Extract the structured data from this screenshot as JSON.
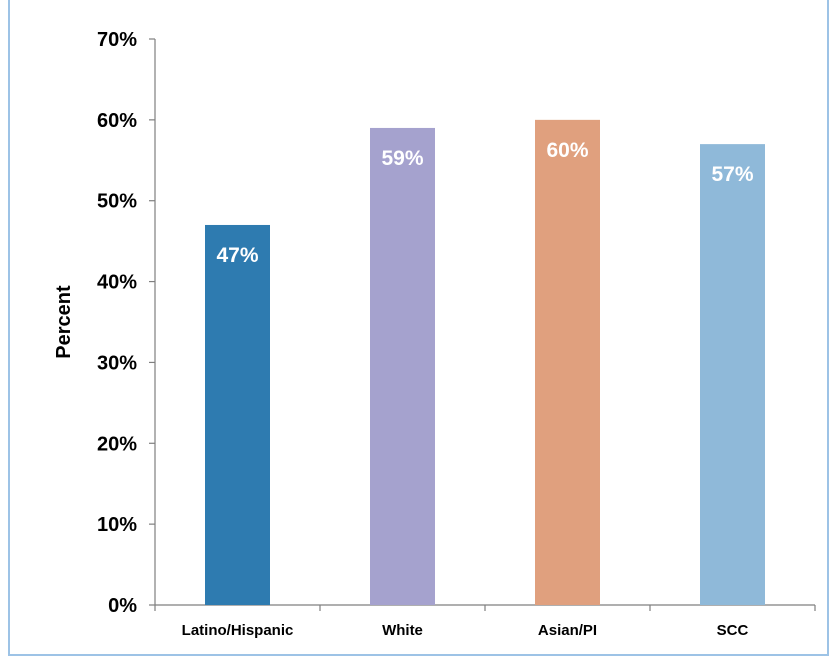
{
  "chart_data": {
    "type": "bar",
    "title": "",
    "xlabel": "",
    "ylabel": "Percent",
    "ylim": [
      0,
      70
    ],
    "y_ticks": [
      "0%",
      "10%",
      "20%",
      "30%",
      "40%",
      "50%",
      "60%",
      "70%"
    ],
    "grid": false,
    "legend": "none",
    "categories": [
      "Latino/Hispanic",
      "White",
      "Asian/PI",
      "SCC"
    ],
    "values": [
      47,
      59,
      60,
      57
    ],
    "data_labels": [
      "47%",
      "59%",
      "60%",
      "57%"
    ],
    "colors": [
      "#2e7bb0",
      "#a5a2ce",
      "#e0a07e",
      "#8fb9d9"
    ]
  }
}
